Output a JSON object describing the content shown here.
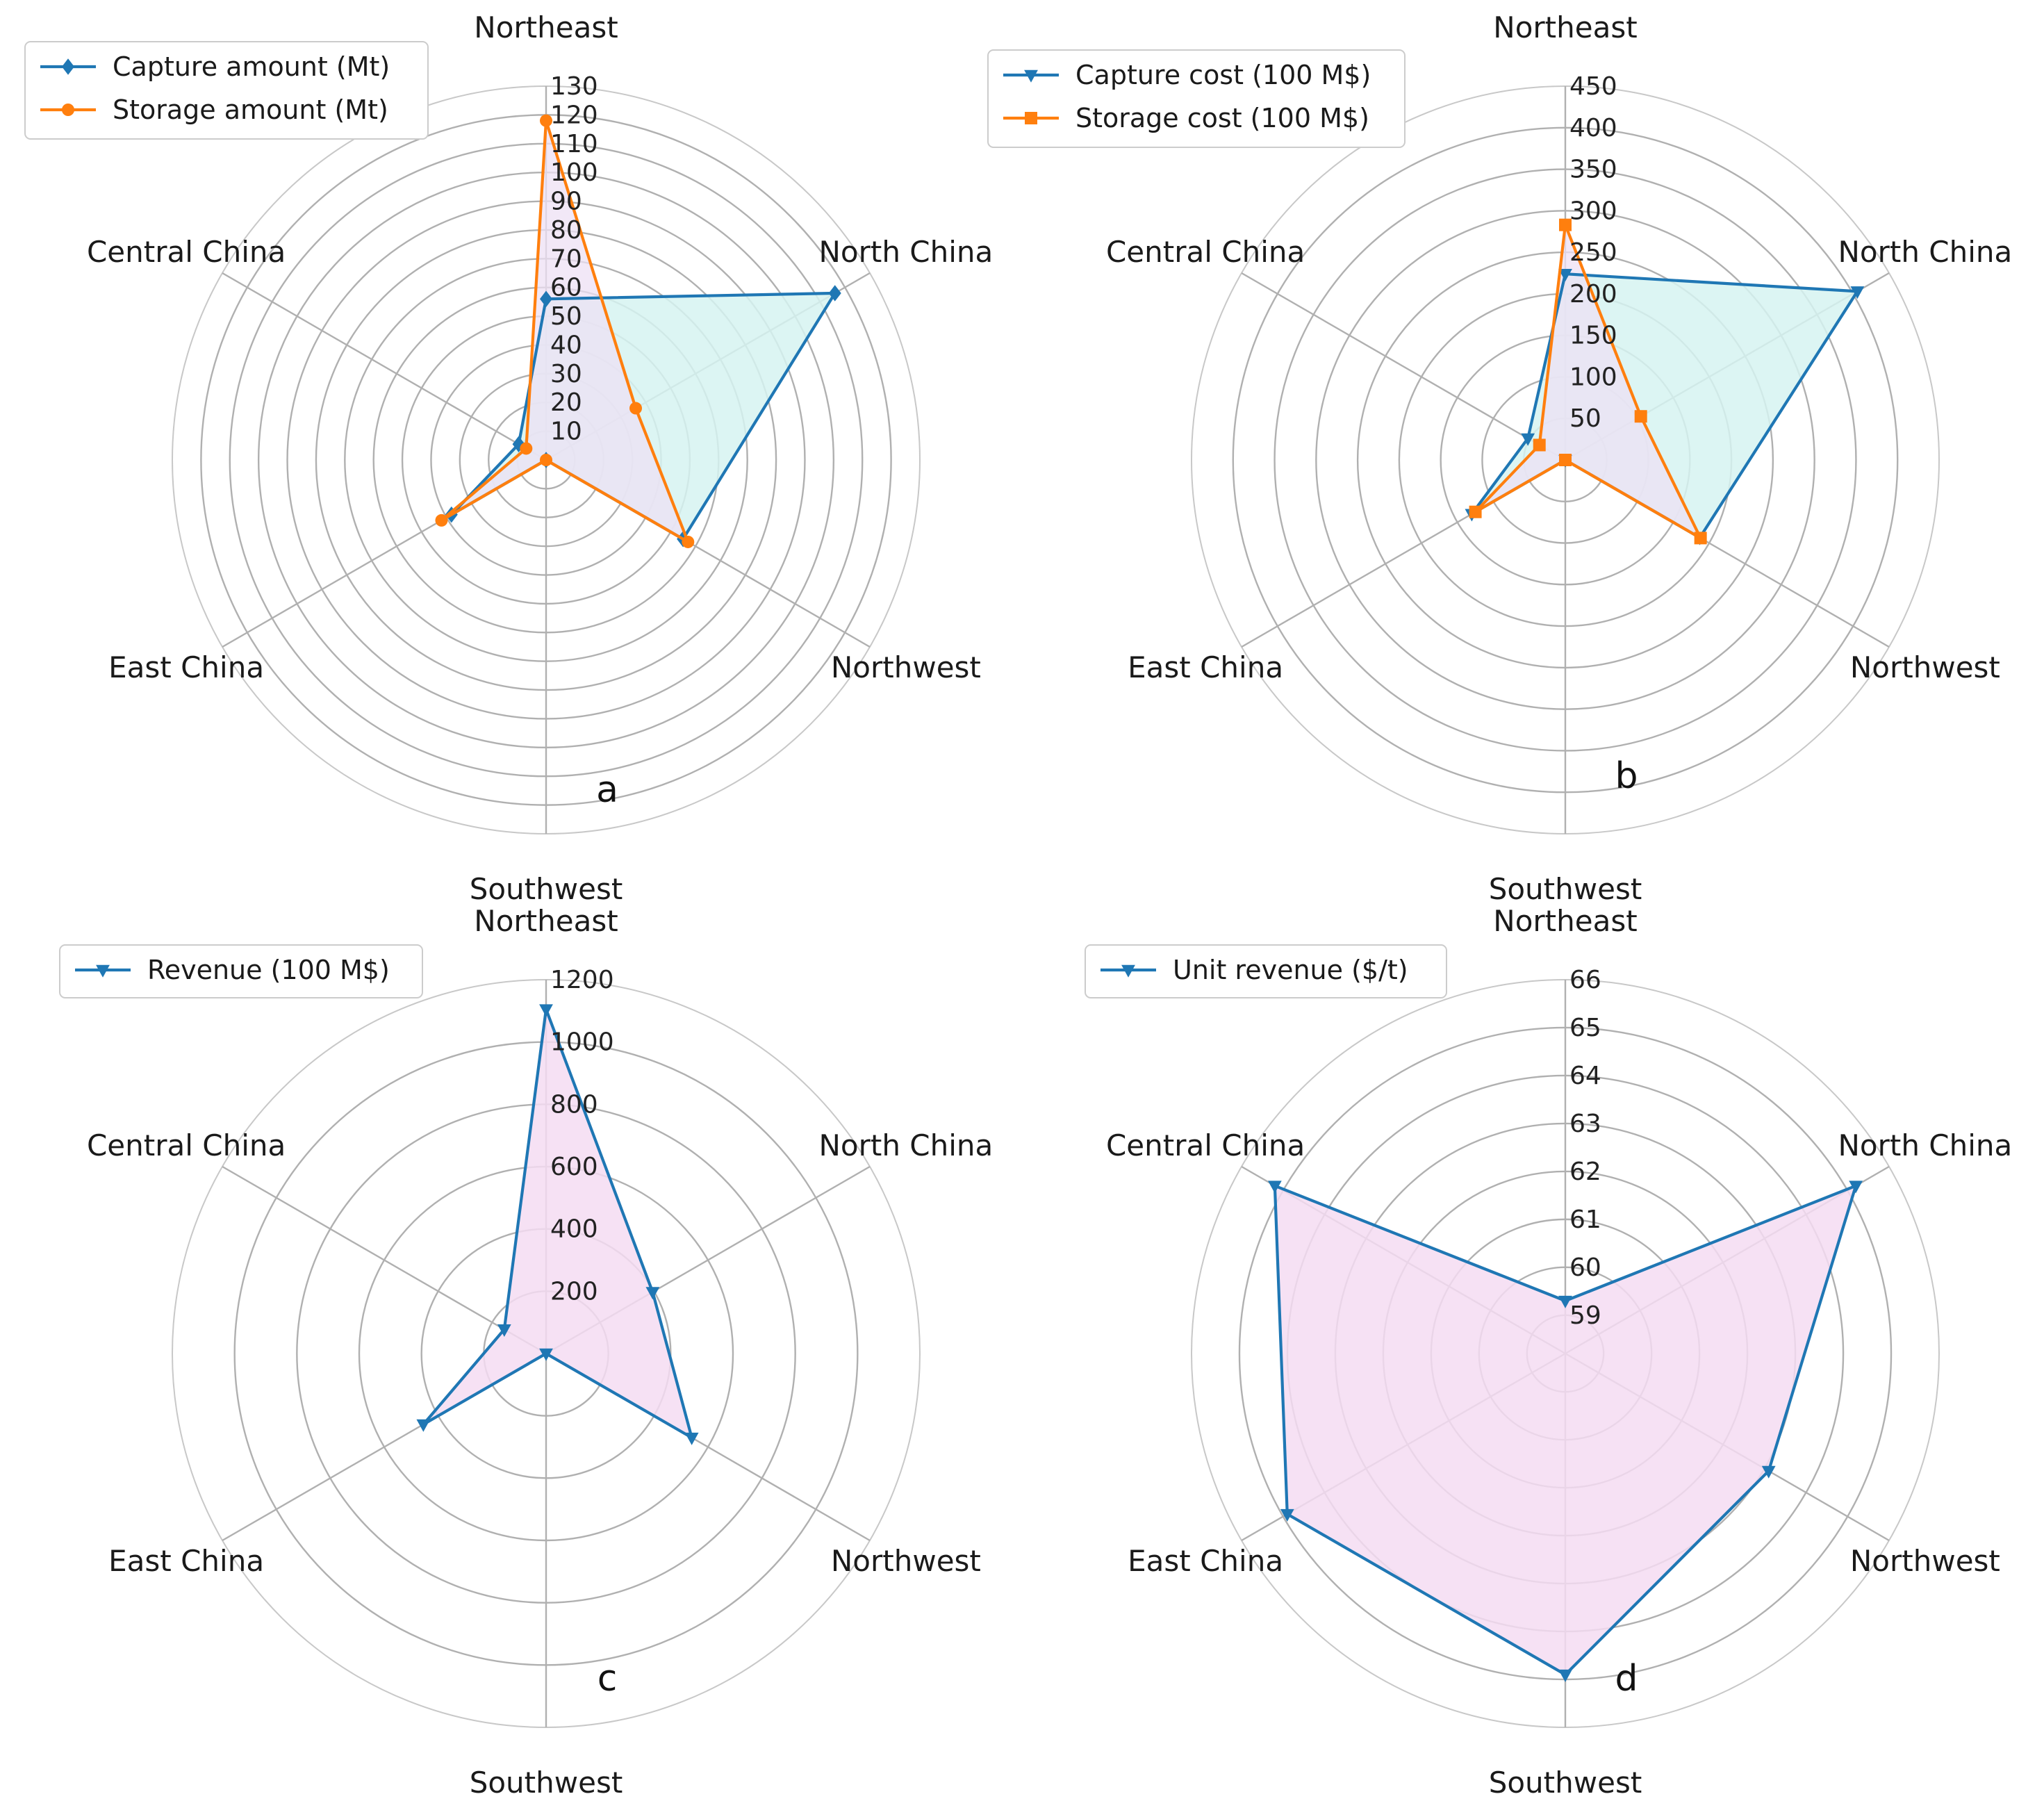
{
  "figure": {
    "colors": {
      "blue": "#1f77b4",
      "orange": "#ff7f0e",
      "fill_teal": "#d6f3f1",
      "fill_purple": "#ede0f4",
      "fill_pink": "#f4dcf2"
    }
  },
  "chart_data": [
    {
      "type": "radar",
      "panel": "a",
      "categories": [
        "Northeast",
        "North China",
        "Northwest",
        "Southwest",
        "East China",
        "Central China"
      ],
      "rlim": [
        0,
        130
      ],
      "rticks": [
        10,
        20,
        30,
        40,
        50,
        60,
        70,
        80,
        90,
        100,
        110,
        120,
        130
      ],
      "rtick_labels": [
        "10",
        "20",
        "30",
        "40",
        "50",
        "60",
        "70",
        "80",
        "90",
        "100",
        "110",
        "120",
        "130"
      ],
      "legend_position": "top-left",
      "series": [
        {
          "name": "Capture amount (Mt)",
          "color": "#1f77b4",
          "marker": "diamond",
          "fill": "#d6f3f1",
          "values": [
            56,
            116,
            55,
            0,
            38,
            11
          ]
        },
        {
          "name": "Storage amount (Mt)",
          "color": "#ff7f0e",
          "marker": "circle",
          "fill": "#ede0f4",
          "values": [
            118,
            36,
            57,
            0,
            42,
            8
          ]
        }
      ]
    },
    {
      "type": "radar",
      "panel": "b",
      "categories": [
        "Northeast",
        "North China",
        "Northwest",
        "Southwest",
        "East China",
        "Central China"
      ],
      "rlim": [
        0,
        450
      ],
      "rticks": [
        50,
        100,
        150,
        200,
        250,
        300,
        350,
        400,
        450
      ],
      "rtick_labels": [
        "50",
        "100",
        "150",
        "200",
        "250",
        "300",
        "350",
        "400",
        "450"
      ],
      "legend_position": "top-left",
      "series": [
        {
          "name": "Capture cost (100 M$)",
          "color": "#1f77b4",
          "marker": "triangle-down",
          "fill": "#d6f3f1",
          "values": [
            224,
            406,
            187,
            0,
            130,
            52
          ]
        },
        {
          "name": "Storage cost (100 M$)",
          "color": "#ff7f0e",
          "marker": "square",
          "fill": "#ede0f4",
          "values": [
            283,
            105,
            188,
            0,
            125,
            36
          ]
        }
      ]
    },
    {
      "type": "radar",
      "panel": "c",
      "categories": [
        "Northeast",
        "North China",
        "Northwest",
        "Southwest",
        "East China",
        "Central China"
      ],
      "rlim": [
        0,
        1200
      ],
      "rticks": [
        200,
        400,
        600,
        800,
        1000,
        1200
      ],
      "rtick_labels": [
        "200",
        "400",
        "600",
        "800",
        "1000",
        "1200"
      ],
      "legend_position": "top-left",
      "series": [
        {
          "name": "Revenue (100 M$)",
          "color": "#1f77b4",
          "marker": "triangle-down",
          "fill": "#f4dcf2",
          "values": [
            1105,
            395,
            540,
            0,
            455,
            155
          ]
        }
      ]
    },
    {
      "type": "radar",
      "panel": "d",
      "categories": [
        "Northeast",
        "North China",
        "Northwest",
        "Southwest",
        "East China",
        "Central China"
      ],
      "rlim": [
        58.2,
        66
      ],
      "rticks": [
        59,
        60,
        61,
        62,
        63,
        64,
        65,
        66
      ],
      "rtick_labels": [
        "59",
        "60",
        "61",
        "62",
        "63",
        "64",
        "65",
        "66"
      ],
      "legend_position": "top-left",
      "series": [
        {
          "name": "Unit revenue ($/t)",
          "color": "#1f77b4",
          "marker": "triangle-down",
          "fill": "#f4dcf2",
          "values": [
            59.3,
            65.2,
            63.1,
            64.9,
            64.9,
            65.2
          ]
        }
      ]
    }
  ]
}
